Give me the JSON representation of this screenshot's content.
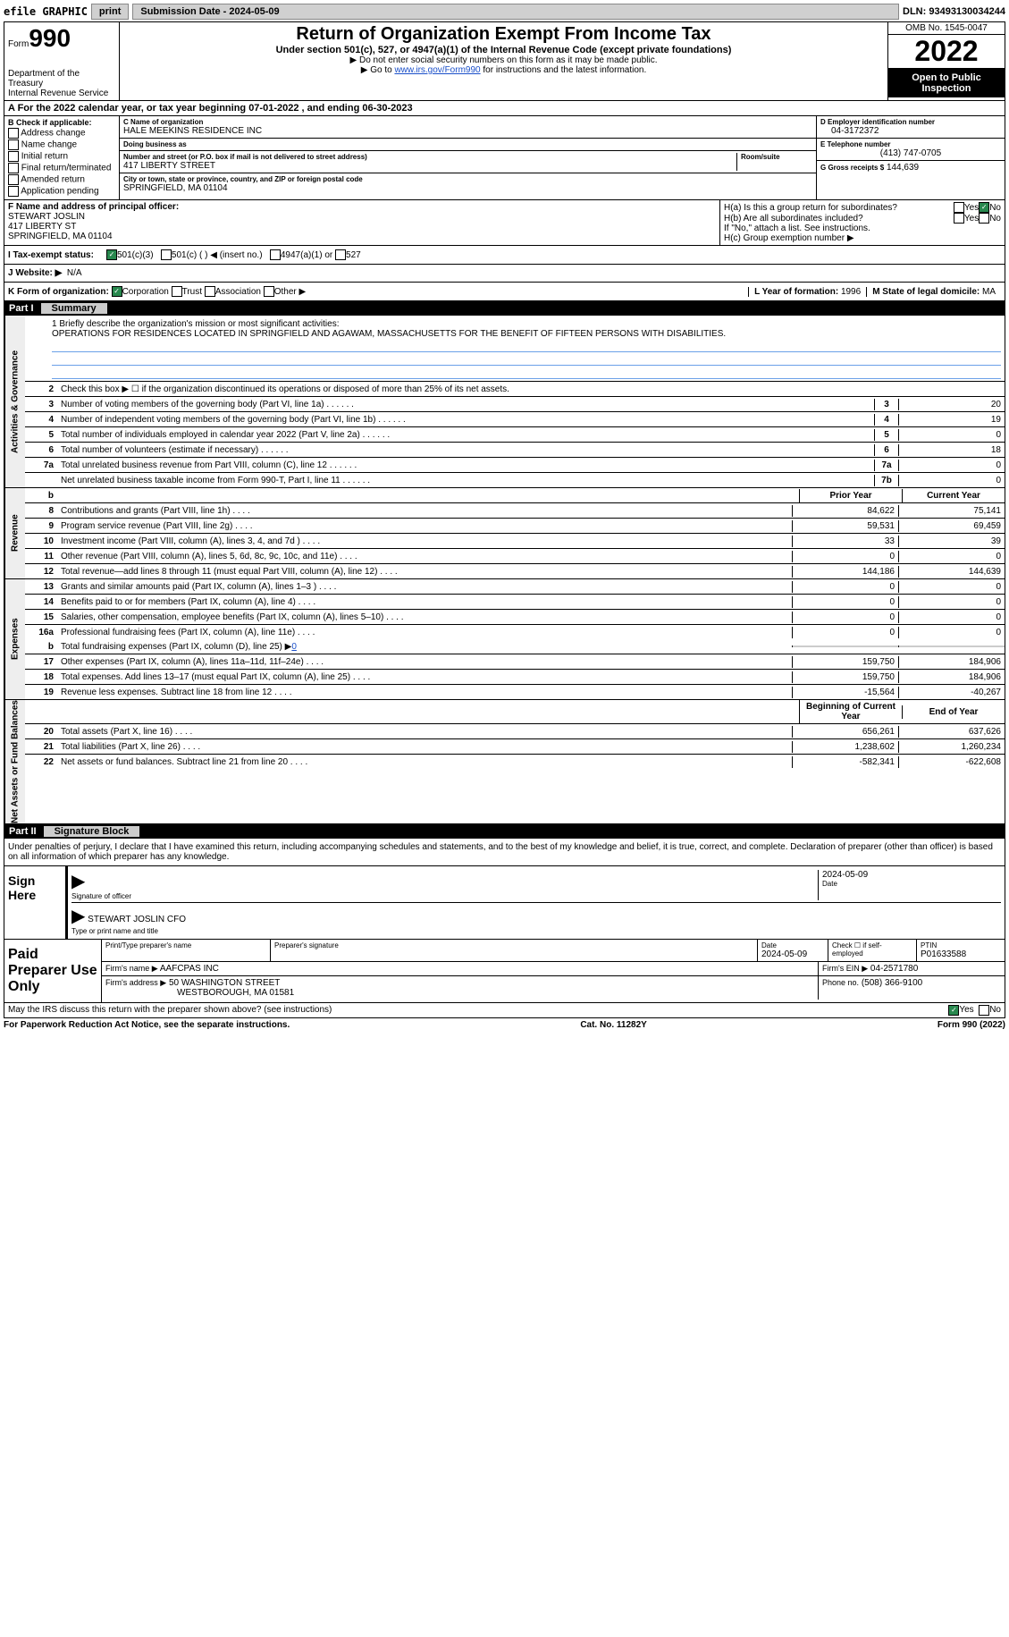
{
  "top": {
    "efile": "efile GRAPHIC",
    "print": "print",
    "submission": "Submission Date - 2024-05-09",
    "dln": "DLN: 93493130034244"
  },
  "header": {
    "form_label": "Form",
    "form_num": "990",
    "dept": "Department of the Treasury",
    "irs": "Internal Revenue Service",
    "title": "Return of Organization Exempt From Income Tax",
    "subtitle": "Under section 501(c), 527, or 4947(a)(1) of the Internal Revenue Code (except private foundations)",
    "note1": "▶ Do not enter social security numbers on this form as it may be made public.",
    "note2_pre": "▶ Go to ",
    "note2_link": "www.irs.gov/Form990",
    "note2_post": " for instructions and the latest information.",
    "omb": "OMB No. 1545-0047",
    "year": "2022",
    "open": "Open to Public Inspection"
  },
  "section_a": "A For the 2022 calendar year, or tax year beginning 07-01-2022    , and ending 06-30-2023",
  "col_b": {
    "title": "B Check if applicable:",
    "items": [
      "Address change",
      "Name change",
      "Initial return",
      "Final return/terminated",
      "Amended return",
      "Application pending"
    ]
  },
  "col_c": {
    "name_lbl": "C Name of organization",
    "name": "HALE MEEKINS RESIDENCE INC",
    "dba_lbl": "Doing business as",
    "dba": "",
    "addr_lbl": "Number and street (or P.O. box if mail is not delivered to street address)",
    "room_lbl": "Room/suite",
    "addr": "417 LIBERTY STREET",
    "city_lbl": "City or town, state or province, country, and ZIP or foreign postal code",
    "city": "SPRINGFIELD, MA  01104"
  },
  "col_d": {
    "ein_lbl": "D Employer identification number",
    "ein": "04-3172372",
    "phone_lbl": "E Telephone number",
    "phone": "(413) 747-0705",
    "gross_lbl": "G Gross receipts $",
    "gross": "144,639"
  },
  "section_f": {
    "lbl": "F  Name and address of principal officer:",
    "name": "STEWART JOSLIN",
    "addr1": "417 LIBERTY ST",
    "addr2": "SPRINGFIELD, MA  01104"
  },
  "section_h": {
    "a": "H(a)  Is this a group return for subordinates?",
    "b": "H(b)  Are all subordinates included?",
    "b_note": "If \"No,\" attach a list. See instructions.",
    "c": "H(c)  Group exemption number ▶",
    "yes": "Yes",
    "no": "No"
  },
  "tax_status": {
    "lbl": "I  Tax-exempt status:",
    "opts": [
      "501(c)(3)",
      "501(c) (  ) ◀ (insert no.)",
      "4947(a)(1) or",
      "527"
    ]
  },
  "website": {
    "lbl": "J  Website: ▶",
    "val": "N/A"
  },
  "form_org": {
    "lbl": "K Form of organization:",
    "opts": [
      "Corporation",
      "Trust",
      "Association",
      "Other ▶"
    ],
    "year_lbl": "L Year of formation:",
    "year": "1996",
    "state_lbl": "M State of legal domicile:",
    "state": "MA"
  },
  "part1": {
    "label": "Part I",
    "title": "Summary"
  },
  "part2": {
    "label": "Part II",
    "title": "Signature Block"
  },
  "side_labels": [
    "Activities & Governance",
    "Revenue",
    "Expenses",
    "Net Assets or Fund Balances"
  ],
  "mission": {
    "lbl": "1   Briefly describe the organization's mission or most significant activities:",
    "text": "OPERATIONS FOR RESIDENCES LOCATED IN SPRINGFIELD AND AGAWAM, MASSACHUSETTS FOR THE BENEFIT OF FIFTEEN PERSONS WITH DISABILITIES."
  },
  "line2": "Check this box ▶ ☐  if the organization discontinued its operations or disposed of more than 25% of its net assets.",
  "governance_rows": [
    {
      "n": "3",
      "label": "Number of voting members of the governing body (Part VI, line 1a)",
      "box": "3",
      "val": "20"
    },
    {
      "n": "4",
      "label": "Number of independent voting members of the governing body (Part VI, line 1b)",
      "box": "4",
      "val": "19"
    },
    {
      "n": "5",
      "label": "Total number of individuals employed in calendar year 2022 (Part V, line 2a)",
      "box": "5",
      "val": "0"
    },
    {
      "n": "6",
      "label": "Total number of volunteers (estimate if necessary)",
      "box": "6",
      "val": "18"
    },
    {
      "n": "7a",
      "label": "Total unrelated business revenue from Part VIII, column (C), line 12",
      "box": "7a",
      "val": "0"
    },
    {
      "n": "",
      "label": "Net unrelated business taxable income from Form 990-T, Part I, line 11",
      "box": "7b",
      "val": "0"
    }
  ],
  "col_headers": {
    "b": "b",
    "prior": "Prior Year",
    "current": "Current Year"
  },
  "revenue_rows": [
    {
      "n": "8",
      "label": "Contributions and grants (Part VIII, line 1h)",
      "prior": "84,622",
      "cur": "75,141"
    },
    {
      "n": "9",
      "label": "Program service revenue (Part VIII, line 2g)",
      "prior": "59,531",
      "cur": "69,459"
    },
    {
      "n": "10",
      "label": "Investment income (Part VIII, column (A), lines 3, 4, and 7d )",
      "prior": "33",
      "cur": "39"
    },
    {
      "n": "11",
      "label": "Other revenue (Part VIII, column (A), lines 5, 6d, 8c, 9c, 10c, and 11e)",
      "prior": "0",
      "cur": "0"
    },
    {
      "n": "12",
      "label": "Total revenue—add lines 8 through 11 (must equal Part VIII, column (A), line 12)",
      "prior": "144,186",
      "cur": "144,639"
    }
  ],
  "expense_rows": [
    {
      "n": "13",
      "label": "Grants and similar amounts paid (Part IX, column (A), lines 1–3 )",
      "prior": "0",
      "cur": "0"
    },
    {
      "n": "14",
      "label": "Benefits paid to or for members (Part IX, column (A), line 4)",
      "prior": "0",
      "cur": "0"
    },
    {
      "n": "15",
      "label": "Salaries, other compensation, employee benefits (Part IX, column (A), lines 5–10)",
      "prior": "0",
      "cur": "0"
    },
    {
      "n": "16a",
      "label": "Professional fundraising fees (Part IX, column (A), line 11e)",
      "prior": "0",
      "cur": "0"
    }
  ],
  "line16b": {
    "n": "b",
    "label": "Total fundraising expenses (Part IX, column (D), line 25) ▶",
    "val": "0"
  },
  "expense_rows2": [
    {
      "n": "17",
      "label": "Other expenses (Part IX, column (A), lines 11a–11d, 11f–24e)",
      "prior": "159,750",
      "cur": "184,906"
    },
    {
      "n": "18",
      "label": "Total expenses. Add lines 13–17 (must equal Part IX, column (A), line 25)",
      "prior": "159,750",
      "cur": "184,906"
    },
    {
      "n": "19",
      "label": "Revenue less expenses. Subtract line 18 from line 12",
      "prior": "-15,564",
      "cur": "-40,267"
    }
  ],
  "net_headers": {
    "begin": "Beginning of Current Year",
    "end": "End of Year"
  },
  "net_rows": [
    {
      "n": "20",
      "label": "Total assets (Part X, line 16)",
      "prior": "656,261",
      "cur": "637,626"
    },
    {
      "n": "21",
      "label": "Total liabilities (Part X, line 26)",
      "prior": "1,238,602",
      "cur": "1,260,234"
    },
    {
      "n": "22",
      "label": "Net assets or fund balances. Subtract line 21 from line 20",
      "prior": "-582,341",
      "cur": "-622,608"
    }
  ],
  "declaration": "Under penalties of perjury, I declare that I have examined this return, including accompanying schedules and statements, and to the best of my knowledge and belief, it is true, correct, and complete. Declaration of preparer (other than officer) is based on all information of which preparer has any knowledge.",
  "sign": {
    "here": "Sign Here",
    "sig_officer": "Signature of officer",
    "date": "Date",
    "date_val": "2024-05-09",
    "name_title": "STEWART JOSLIN CFO",
    "name_lbl": "Type or print name and title"
  },
  "preparer": {
    "lbl": "Paid Preparer Use Only",
    "name_lbl": "Print/Type preparer's name",
    "sig_lbl": "Preparer's signature",
    "date_lbl": "Date",
    "date": "2024-05-09",
    "check_lbl": "Check ☐ if self-employed",
    "ptin_lbl": "PTIN",
    "ptin": "P01633588",
    "firm_name_lbl": "Firm's name    ▶",
    "firm_name": "AAFCPAS INC",
    "firm_ein_lbl": "Firm's EIN ▶",
    "firm_ein": "04-2571780",
    "firm_addr_lbl": "Firm's address ▶",
    "firm_addr": "50 WASHINGTON STREET",
    "firm_addr2": "WESTBOROUGH, MA  01581",
    "phone_lbl": "Phone no.",
    "phone": "(508) 366-9100"
  },
  "discuss": {
    "text": "May the IRS discuss this return with the preparer shown above? (see instructions)",
    "yes": "Yes",
    "no": "No"
  },
  "footer": {
    "left": "For Paperwork Reduction Act Notice, see the separate instructions.",
    "mid": "Cat. No. 11282Y",
    "right": "Form 990 (2022)"
  }
}
